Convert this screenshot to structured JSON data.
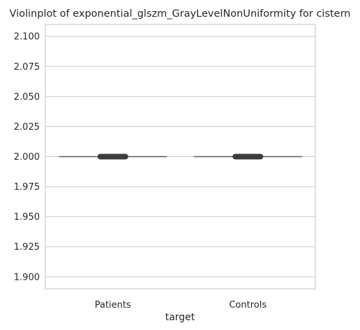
{
  "chart_data": {
    "type": "violin",
    "title": "Violinplot of exponential_glszm_GrayLevelNonUniformity for cistern",
    "xlabel": "target",
    "ylabel": "",
    "categories": [
      "Patients",
      "Controls"
    ],
    "ylim": [
      1.89,
      2.11
    ],
    "yticks": [
      1.9,
      1.925,
      1.95,
      1.975,
      2.0,
      2.025,
      2.05,
      2.075,
      2.1
    ],
    "ytick_labels": [
      "1.900",
      "1.925",
      "1.950",
      "1.975",
      "2.000",
      "2.025",
      "2.050",
      "2.075",
      "2.100"
    ],
    "series": [
      {
        "category": "Patients",
        "median": 2.0,
        "q1": 2.0,
        "q3": 2.0
      },
      {
        "category": "Controls",
        "median": 2.0,
        "q1": 2.0,
        "q3": 2.0
      }
    ],
    "grid": "horizontal",
    "colors": {
      "grid": "#cccccc",
      "frame": "#cccccc",
      "line": "#595959",
      "box": "#3d3d3d",
      "text": "#262626"
    }
  }
}
